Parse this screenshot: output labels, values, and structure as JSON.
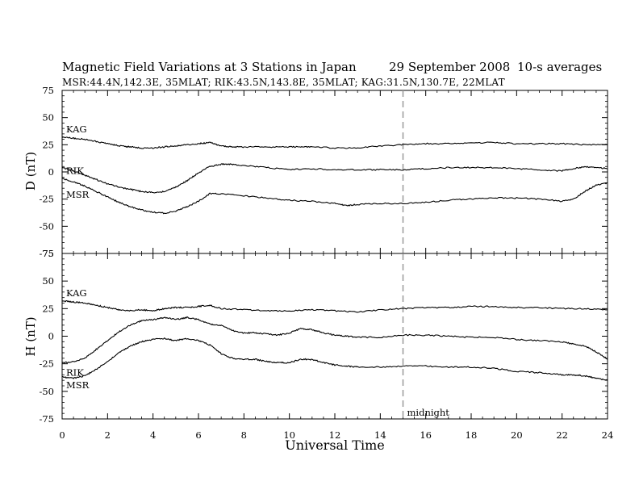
{
  "title": {
    "main": "Magnetic Field Variations at 3 Stations in Japan",
    "date": "29 September 2008",
    "averaging": "10-s averages",
    "stations": "MSR:44.4N,142.3E, 35MLAT;   RIK:43.5N,143.8E, 35MLAT;   KAG:31.5N,130.7E, 22MLAT"
  },
  "chart_data": [
    {
      "type": "line",
      "panel": "D",
      "ylabel": "D (nT)",
      "xlabel": "Universal Time",
      "xlim": [
        0,
        24
      ],
      "ylim": [
        -75,
        75
      ],
      "xticks": [
        0,
        2,
        4,
        6,
        8,
        10,
        12,
        14,
        16,
        18,
        20,
        22,
        24
      ],
      "yticks": [
        75,
        50,
        25,
        0,
        -25,
        -50,
        -75
      ],
      "vertical_marker": {
        "x": 15,
        "style": "dashed"
      },
      "series": [
        {
          "name": "KAG",
          "x": [
            0,
            0.5,
            1,
            1.5,
            2,
            2.5,
            3,
            3.5,
            4,
            4.5,
            5,
            5.5,
            6,
            6.5,
            7,
            7.5,
            8,
            9,
            10,
            10.5,
            11,
            12,
            13,
            14,
            15,
            16,
            17,
            18,
            19,
            20,
            21,
            22,
            23,
            24
          ],
          "y": [
            32,
            31,
            30,
            28,
            26,
            24,
            23,
            22,
            22,
            23,
            24,
            25,
            26,
            27,
            24,
            23,
            23,
            23,
            23,
            23,
            23,
            22,
            22,
            24,
            25,
            26,
            26,
            27,
            27,
            26,
            26,
            26,
            25,
            25
          ]
        },
        {
          "name": "RIK",
          "x": [
            0,
            0.5,
            1,
            1.5,
            2,
            2.5,
            3,
            3.5,
            4,
            4.5,
            5,
            5.5,
            6,
            6.5,
            7,
            7.5,
            8,
            9,
            10,
            11,
            12,
            13,
            14,
            15,
            16,
            17,
            18,
            19,
            20,
            21,
            22,
            22.5,
            23,
            23.5,
            24
          ],
          "y": [
            4,
            1,
            -3,
            -7,
            -11,
            -14,
            -16,
            -18,
            -19,
            -18,
            -14,
            -8,
            -1,
            5,
            7,
            7,
            6,
            4,
            2,
            3,
            2,
            2,
            2,
            2,
            3,
            4,
            4,
            4,
            3,
            2,
            1,
            3,
            5,
            4,
            3
          ]
        },
        {
          "name": "MSR",
          "x": [
            0,
            0.5,
            1,
            1.5,
            2,
            2.5,
            3,
            3.5,
            4,
            4.5,
            5,
            5.5,
            6,
            6.5,
            7,
            8,
            9,
            10,
            11,
            12,
            12.5,
            13,
            14,
            15,
            16,
            17,
            18,
            19,
            20,
            21,
            22,
            22.5,
            23,
            23.5,
            24
          ],
          "y": [
            -6,
            -9,
            -13,
            -18,
            -23,
            -28,
            -32,
            -35,
            -37,
            -38,
            -36,
            -32,
            -27,
            -20,
            -20,
            -22,
            -24,
            -26,
            -27,
            -29,
            -31,
            -30,
            -29,
            -29,
            -28,
            -26,
            -25,
            -24,
            -24,
            -25,
            -27,
            -25,
            -18,
            -12,
            -10
          ]
        }
      ]
    },
    {
      "type": "line",
      "panel": "H",
      "ylabel": "H (nT)",
      "xlabel": "Universal Time",
      "xlim": [
        0,
        24
      ],
      "ylim": [
        -75,
        75
      ],
      "xticks": [
        0,
        2,
        4,
        6,
        8,
        10,
        12,
        14,
        16,
        18,
        20,
        22,
        24
      ],
      "xtick_labels": [
        "0",
        "2",
        "4",
        "6",
        "8",
        "10",
        "12",
        "14",
        "16",
        "18",
        "20",
        "22",
        "24"
      ],
      "yticks": [
        75,
        50,
        25,
        0,
        -25,
        -50,
        -75
      ],
      "vertical_marker": {
        "x": 15,
        "style": "dashed",
        "label": "midnight"
      },
      "series": [
        {
          "name": "KAG",
          "x": [
            0,
            0.5,
            1,
            1.5,
            2,
            2.5,
            3,
            3.5,
            4,
            4.5,
            5,
            5.5,
            6,
            6.5,
            7,
            8,
            9,
            10,
            11,
            12,
            13,
            14,
            15,
            16,
            17,
            18,
            19,
            20,
            21,
            22,
            23,
            24
          ],
          "y": [
            32,
            31,
            30,
            28,
            26,
            24,
            23,
            24,
            23,
            25,
            26,
            26,
            27,
            28,
            25,
            24,
            23,
            23,
            24,
            23,
            22,
            24,
            25,
            26,
            26,
            27,
            27,
            26,
            26,
            25,
            25,
            24
          ]
        },
        {
          "name": "RIK",
          "x": [
            0,
            0.5,
            1,
            1.5,
            2,
            2.5,
            3,
            3.5,
            4,
            4.5,
            5,
            5.5,
            6,
            6.5,
            7,
            7.5,
            8,
            8.5,
            9,
            9.5,
            10,
            10.5,
            11,
            11.5,
            12,
            12.5,
            13,
            14,
            15,
            16,
            17,
            18,
            19,
            20,
            21,
            22,
            22.5,
            23,
            23.5,
            24
          ],
          "y": [
            -24,
            -23,
            -20,
            -12,
            -4,
            4,
            10,
            14,
            15,
            17,
            15,
            17,
            15,
            11,
            10,
            5,
            3,
            3,
            2,
            1,
            3,
            7,
            6,
            3,
            1,
            0,
            -1,
            -1,
            1,
            1,
            0,
            -1,
            -1,
            -3,
            -4,
            -5,
            -7,
            -9,
            -14,
            -21
          ]
        },
        {
          "name": "MSR",
          "x": [
            0,
            0.5,
            1,
            1.5,
            2,
            2.5,
            3,
            3.5,
            4,
            4.5,
            5,
            5.5,
            6,
            6.5,
            7,
            7.5,
            8,
            8.5,
            9,
            9.5,
            10,
            10.5,
            11,
            11.5,
            12,
            12.5,
            13,
            14,
            15,
            16,
            17,
            18,
            19,
            20,
            21,
            22,
            22.5,
            23,
            23.5,
            24
          ],
          "y": [
            -37,
            -38,
            -36,
            -30,
            -23,
            -15,
            -9,
            -5,
            -3,
            -2,
            -4,
            -2,
            -4,
            -8,
            -16,
            -20,
            -21,
            -21,
            -23,
            -24,
            -24,
            -21,
            -21,
            -24,
            -26,
            -27,
            -28,
            -28,
            -27,
            -27,
            -28,
            -28,
            -29,
            -32,
            -33,
            -35,
            -35,
            -36,
            -38,
            -40
          ]
        }
      ]
    }
  ]
}
